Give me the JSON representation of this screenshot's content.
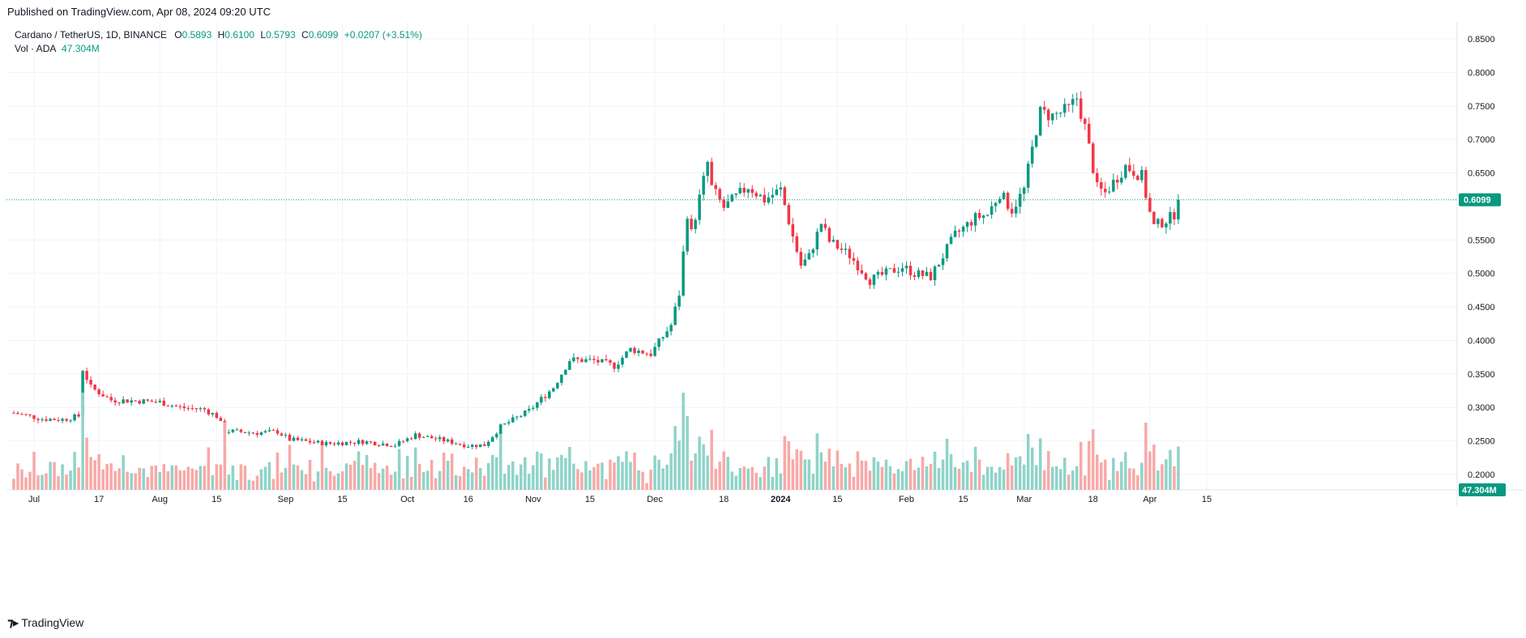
{
  "published": "Published on TradingView.com, Apr 08, 2024 09:20 UTC",
  "footer": {
    "brand": "TradingView"
  },
  "legend": {
    "symbol": "Cardano / TetherUS, 1D, BINANCE",
    "open_label": "O",
    "open": "0.5893",
    "high_label": "H",
    "high": "0.6100",
    "low_label": "L",
    "low": "0.5793",
    "close_label": "C",
    "close": "0.6099",
    "change": "+0.0207 (+3.51%)",
    "vol_label": "Vol · ADA",
    "vol_value": "47.304M"
  },
  "colors": {
    "up": "#089981",
    "down": "#f23645",
    "up_vol": "#8fd3c8",
    "down_vol": "#f7a9a7",
    "grid": "#f0f3fa",
    "last_price": "#089981"
  },
  "chart_data": {
    "type": "candlestick",
    "symbol": "Cardano / TetherUS",
    "interval": "1D",
    "exchange": "BINANCE",
    "price_axis_labels": [
      "0.8500",
      "0.8000",
      "0.7500",
      "0.7000",
      "0.6500",
      "0.5500",
      "0.5000",
      "0.4500",
      "0.4000",
      "0.3500",
      "0.3000",
      "0.2500",
      "0.2000"
    ],
    "ylim": [
      0.19,
      0.86
    ],
    "time_axis_labels": [
      "Jul",
      "17",
      "Aug",
      "15",
      "Sep",
      "15",
      "Oct",
      "16",
      "Nov",
      "15",
      "Dec",
      "18",
      "2024",
      "15",
      "Feb",
      "15",
      "Mar",
      "18",
      "Apr",
      "15"
    ],
    "last_price": "0.6099",
    "last_volume": "47.304M",
    "grid": true,
    "anchors": [
      [
        "2023-06-26",
        0.292
      ],
      [
        "2023-07-03",
        0.283
      ],
      [
        "2023-07-08",
        0.282
      ],
      [
        "2023-07-12",
        0.287
      ],
      [
        "2023-07-13",
        0.357
      ],
      [
        "2023-07-15",
        0.33
      ],
      [
        "2023-07-20",
        0.311
      ],
      [
        "2023-07-26",
        0.31
      ],
      [
        "2023-08-01",
        0.308
      ],
      [
        "2023-08-06",
        0.3
      ],
      [
        "2023-08-12",
        0.297
      ],
      [
        "2023-08-15",
        0.287
      ],
      [
        "2023-08-17",
        0.265
      ],
      [
        "2023-08-25",
        0.262
      ],
      [
        "2023-08-30",
        0.264
      ],
      [
        "2023-09-02",
        0.252
      ],
      [
        "2023-09-11",
        0.246
      ],
      [
        "2023-09-20",
        0.249
      ],
      [
        "2023-09-28",
        0.244
      ],
      [
        "2023-10-03",
        0.259
      ],
      [
        "2023-10-09",
        0.252
      ],
      [
        "2023-10-16",
        0.243
      ],
      [
        "2023-10-20",
        0.244
      ],
      [
        "2023-10-24",
        0.271
      ],
      [
        "2023-10-31",
        0.295
      ],
      [
        "2023-11-06",
        0.33
      ],
      [
        "2023-11-10",
        0.371
      ],
      [
        "2023-11-16",
        0.37
      ],
      [
        "2023-11-21",
        0.362
      ],
      [
        "2023-11-25",
        0.387
      ],
      [
        "2023-11-30",
        0.38
      ],
      [
        "2023-12-05",
        0.423
      ],
      [
        "2023-12-07",
        0.47
      ],
      [
        "2023-12-09",
        0.59
      ],
      [
        "2023-12-10",
        0.56
      ],
      [
        "2023-12-14",
        0.665
      ],
      [
        "2023-12-15",
        0.628
      ],
      [
        "2023-12-18",
        0.598
      ],
      [
        "2023-12-24",
        0.63
      ],
      [
        "2023-12-28",
        0.61
      ],
      [
        "2024-01-01",
        0.625
      ],
      [
        "2024-01-04",
        0.555
      ],
      [
        "2024-01-06",
        0.512
      ],
      [
        "2024-01-08",
        0.525
      ],
      [
        "2024-01-11",
        0.575
      ],
      [
        "2024-01-13",
        0.548
      ],
      [
        "2024-01-18",
        0.527
      ],
      [
        "2024-01-23",
        0.49
      ],
      [
        "2024-01-27",
        0.5
      ],
      [
        "2024-01-31",
        0.51
      ],
      [
        "2024-02-03",
        0.5
      ],
      [
        "2024-02-07",
        0.495
      ],
      [
        "2024-02-13",
        0.557
      ],
      [
        "2024-02-18",
        0.583
      ],
      [
        "2024-02-21",
        0.588
      ],
      [
        "2024-02-24",
        0.62
      ],
      [
        "2024-02-27",
        0.595
      ],
      [
        "2024-03-01",
        0.625
      ],
      [
        "2024-03-04",
        0.715
      ],
      [
        "2024-03-05",
        0.74
      ],
      [
        "2024-03-08",
        0.735
      ],
      [
        "2024-03-12",
        0.745
      ],
      [
        "2024-03-14",
        0.762
      ],
      [
        "2024-03-16",
        0.718
      ],
      [
        "2024-03-19",
        0.627
      ],
      [
        "2024-03-21",
        0.62
      ],
      [
        "2024-03-26",
        0.66
      ],
      [
        "2024-03-30",
        0.645
      ],
      [
        "2024-04-01",
        0.59
      ],
      [
        "2024-04-02",
        0.57
      ],
      [
        "2024-04-06",
        0.583
      ],
      [
        "2024-04-07",
        0.589
      ],
      [
        "2024-04-08",
        0.6099
      ]
    ]
  }
}
